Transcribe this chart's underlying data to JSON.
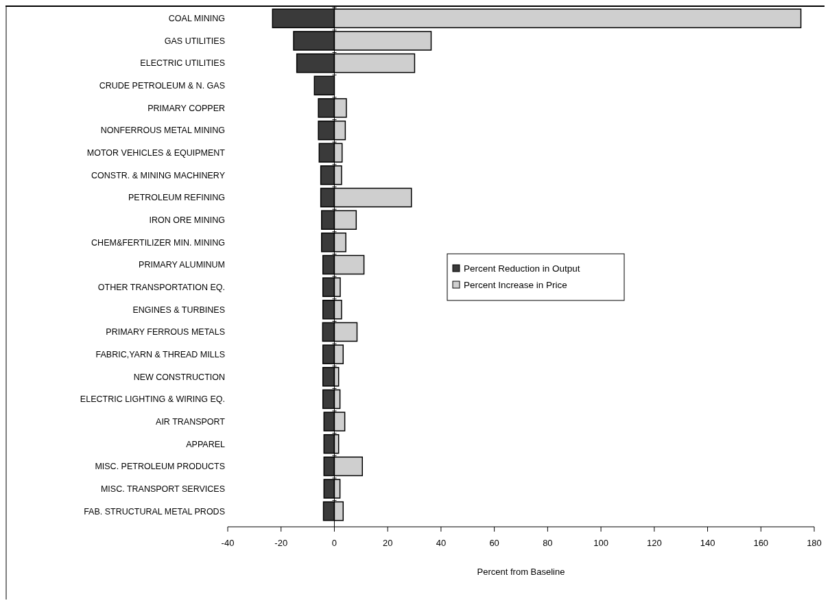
{
  "chart_data": {
    "type": "bar",
    "orientation": "horizontal",
    "xlabel": "Percent from Baseline",
    "categories": [
      "COAL MINING",
      "GAS UTILITIES",
      "ELECTRIC UTILITIES",
      "CRUDE PETROLEUM & N. GAS",
      "PRIMARY COPPER",
      "NONFERROUS METAL MINING",
      "MOTOR VEHICLES & EQUIPMENT",
      "CONSTR. & MINING MACHINERY",
      "PETROLEUM REFINING",
      "IRON ORE MINING",
      "CHEM&FERTILIZER MIN. MINING",
      "PRIMARY ALUMINUM",
      "OTHER TRANSPORTATION EQ.",
      "ENGINES & TURBINES",
      "PRIMARY FERROUS METALS",
      "FABRIC,YARN & THREAD MILLS",
      "NEW CONSTRUCTION",
      "ELECTRIC LIGHTING & WIRING EQ.",
      "AIR TRANSPORT",
      "APPAREL",
      "MISC. PETROLEUM PRODUCTS",
      "MISC. TRANSPORT SERVICES",
      "FAB. STRUCTURAL METAL PRODS"
    ],
    "series": [
      {
        "name": "Percent Reduction in Output",
        "color": "#3a3a3a",
        "values": [
          -23.2,
          -15.3,
          -14.1,
          -7.5,
          -6,
          -6,
          -5.7,
          -5.1,
          -5.1,
          -4.8,
          -4.8,
          -4.3,
          -4.3,
          -4.3,
          -4.4,
          -4.3,
          -4.3,
          -4.3,
          -3.9,
          -3.9,
          -3.9,
          -3.9,
          -4.1
        ]
      },
      {
        "name": "Percent Increase in Price",
        "color": "#cfcfcf",
        "values": [
          175,
          36.3,
          30.1,
          0,
          4.5,
          4.1,
          2.9,
          2.7,
          28.9,
          8.2,
          4.3,
          11.1,
          2.2,
          2.7,
          8.5,
          3.3,
          1.6,
          2.1,
          3.9,
          1.6,
          10.5,
          2.1,
          3.3
        ]
      }
    ],
    "xlim": [
      -40,
      180
    ],
    "xticks": [
      -40,
      -20,
      0,
      20,
      40,
      60,
      80,
      100,
      120,
      140,
      160,
      180
    ],
    "legend": "right",
    "stacked": true
  }
}
